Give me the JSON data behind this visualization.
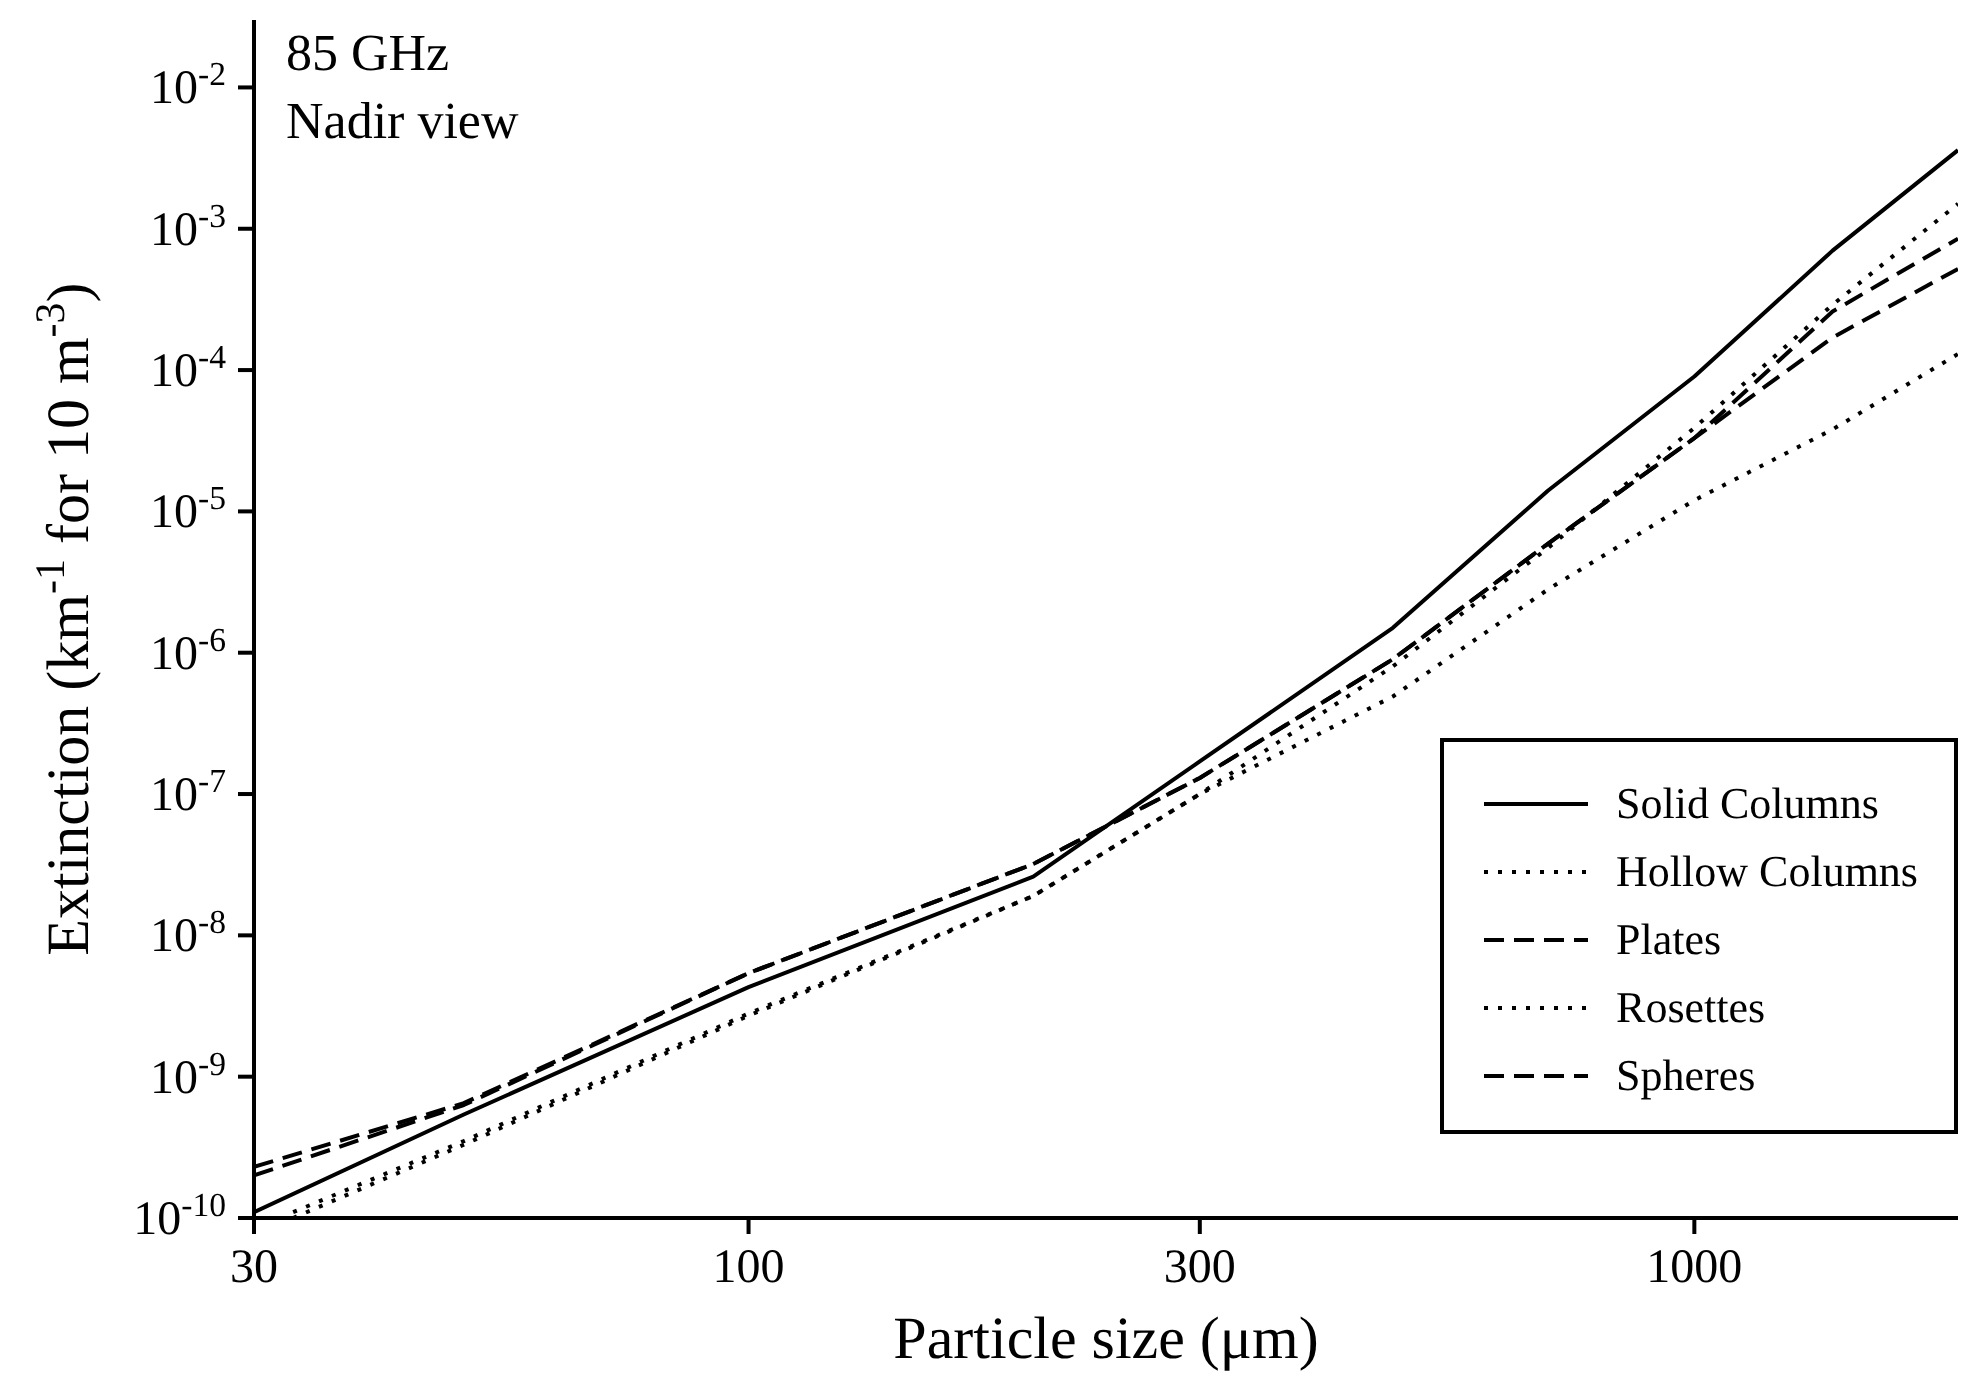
{
  "chart_data": {
    "type": "line",
    "xlabel": "Particle size (μm)",
    "ylabel": "Extinction (km$^{-1}$ for 10 m$^{-3}$)",
    "annotations": [
      "85 GHz",
      "Nadir view"
    ],
    "log": "xy",
    "grid": false,
    "legend": "bottom right",
    "marker": "none",
    "xlim": [
      30,
      1900
    ],
    "xticks": [
      30,
      100,
      300,
      1000
    ],
    "ylim": [
      1e-10,
      0.03
    ],
    "yticks": [
      {
        "value": 1e-10,
        "label": "10$^{-10}$"
      },
      {
        "value": 1e-09,
        "label": "10$^{-9}$"
      },
      {
        "value": 1e-08,
        "label": "10$^{-8}$"
      },
      {
        "value": 1e-07,
        "label": "10$^{-7}$"
      },
      {
        "value": 1e-06,
        "label": "10$^{-6}$"
      },
      {
        "value": 1e-05,
        "label": "10$^{-5}$"
      },
      {
        "value": 0.0001,
        "label": "10$^{-4}$"
      },
      {
        "value": 0.001,
        "label": "10$^{-3}$"
      },
      {
        "value": 0.01,
        "label": "10$^{-2}$"
      }
    ],
    "series": [
      {
        "name": "Solid Columns",
        "color": "#000000",
        "line_style": "solid",
        "x": [
          30,
          50,
          100,
          200,
          300,
          480,
          700,
          1000,
          1400,
          1900
        ],
        "values": [
          1.1e-10,
          5.4e-10,
          4.3e-09,
          2.6e-08,
          1.7e-07,
          1.5e-06,
          1.4e-05,
          9e-05,
          0.0007,
          0.0036
        ]
      },
      {
        "name": "Hollow Columns",
        "color": "#000000",
        "line_style": "dotted",
        "x": [
          33,
          50,
          100,
          200,
          300,
          480,
          700,
          1000,
          1400,
          1900
        ],
        "values": [
          1.1e-10,
          3.5e-10,
          2.8e-09,
          1.9e-08,
          1e-07,
          8e-07,
          5.5e-06,
          3.9e-05,
          0.00029,
          0.0015
        ]
      },
      {
        "name": "Plates",
        "color": "#000000",
        "line_style": "dashed",
        "x": [
          30,
          50,
          100,
          200,
          300,
          480,
          700,
          1000,
          1400,
          1900
        ],
        "values": [
          2.3e-10,
          6.5e-10,
          5.4e-09,
          3.2e-08,
          1.3e-07,
          9e-07,
          5.9e-06,
          3.3e-05,
          0.00017,
          0.00052
        ]
      },
      {
        "name": "Rosettes",
        "color": "#000000",
        "line_style": "dotted",
        "x": [
          33,
          50,
          100,
          200,
          300,
          480,
          700,
          1000,
          1400,
          1900
        ],
        "values": [
          1e-10,
          3.3e-10,
          2.7e-09,
          1.9e-08,
          1e-07,
          4.9e-07,
          2.8e-06,
          1.2e-05,
          3.8e-05,
          0.00013
        ]
      },
      {
        "name": "Spheres",
        "color": "#000000",
        "line_style": "dashed",
        "x": [
          30,
          50,
          100,
          200,
          300,
          480,
          700,
          1000,
          1400,
          1900
        ],
        "values": [
          2e-10,
          6.3e-10,
          5.4e-09,
          3.2e-08,
          1.3e-07,
          9e-07,
          5.9e-06,
          3.3e-05,
          0.00026,
          0.00085
        ]
      }
    ]
  }
}
